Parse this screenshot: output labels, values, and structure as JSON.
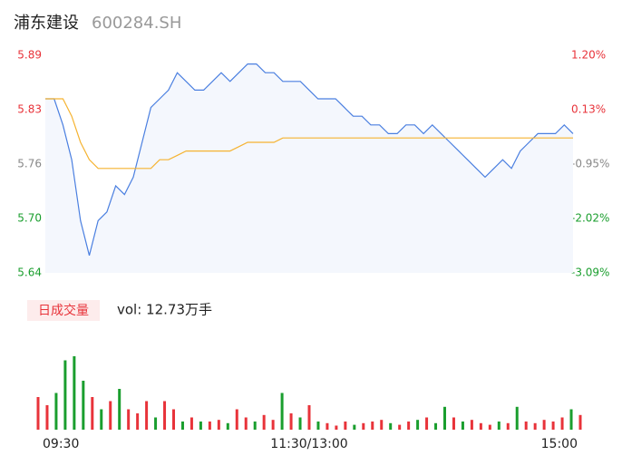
{
  "header": {
    "name": "浦东建设",
    "code": "600284.SH"
  },
  "chart_data": [
    {
      "type": "line",
      "x": [
        0,
        4,
        8,
        12,
        16,
        20,
        24,
        28,
        32,
        36,
        40,
        44,
        48,
        52,
        56,
        60,
        64,
        68,
        72,
        76,
        80,
        84,
        88,
        92,
        96,
        100,
        104,
        108,
        112,
        116,
        120,
        124,
        128,
        132,
        136,
        140,
        144,
        148,
        152,
        156,
        160,
        164,
        168,
        172,
        176,
        180,
        184,
        188,
        192,
        196,
        200,
        204,
        208,
        212,
        216,
        220,
        224,
        228,
        232,
        236,
        240
      ],
      "xlim": [
        0,
        240
      ],
      "xticks": [
        {
          "value": 0,
          "label": "09:30"
        },
        {
          "value": 120,
          "label": "11:30/13:00"
        },
        {
          "value": 240,
          "label": "15:00"
        }
      ],
      "ylim": [
        5.64,
        5.89
      ],
      "yticks": [
        {
          "value": 5.64,
          "label": "5.64"
        },
        {
          "value": 5.7025,
          "label": "5.70"
        },
        {
          "value": 5.765,
          "label": "5.76"
        },
        {
          "value": 5.8275,
          "label": "5.83"
        },
        {
          "value": 5.89,
          "label": "5.89"
        }
      ],
      "y2lim": [
        -3.09,
        1.2
      ],
      "y2ticks": [
        {
          "value": -3.09,
          "label": "-3.09%"
        },
        {
          "value": -2.0175,
          "label": "-2.02%"
        },
        {
          "value": -0.945,
          "label": "-0.95%"
        },
        {
          "value": 0.1275,
          "label": "0.13%"
        },
        {
          "value": 1.2,
          "label": "1.20%"
        }
      ],
      "up_color": "#e8333a",
      "down_color": "#1a9e2e",
      "flat_color": "#888888",
      "area_color": "#f4f7fd",
      "series": [
        {
          "color": "#4a7fe0",
          "values": [
            5.84,
            5.84,
            5.81,
            5.77,
            5.7,
            5.66,
            5.7,
            5.71,
            5.74,
            5.73,
            5.75,
            5.79,
            5.83,
            5.84,
            5.85,
            5.87,
            5.86,
            5.85,
            5.85,
            5.86,
            5.87,
            5.86,
            5.87,
            5.88,
            5.88,
            5.87,
            5.87,
            5.86,
            5.86,
            5.86,
            5.85,
            5.84,
            5.84,
            5.84,
            5.83,
            5.82,
            5.82,
            5.81,
            5.81,
            5.8,
            5.8,
            5.81,
            5.81,
            5.8,
            5.81,
            5.8,
            5.79,
            5.78,
            5.77,
            5.76,
            5.75,
            5.76,
            5.77,
            5.76,
            5.78,
            5.79,
            5.8,
            5.8,
            5.8,
            5.81,
            5.8
          ]
        },
        {
          "color": "#f5b331",
          "values": [
            5.84,
            5.84,
            5.84,
            5.82,
            5.79,
            5.77,
            5.76,
            5.76,
            5.76,
            5.76,
            5.76,
            5.76,
            5.76,
            5.77,
            5.77,
            5.775,
            5.78,
            5.78,
            5.78,
            5.78,
            5.78,
            5.78,
            5.785,
            5.79,
            5.79,
            5.79,
            5.79,
            5.795,
            5.795,
            5.795,
            5.795,
            5.795,
            5.795,
            5.795,
            5.795,
            5.795,
            5.795,
            5.795,
            5.795,
            5.795,
            5.795,
            5.795,
            5.795,
            5.795,
            5.795,
            5.795,
            5.795,
            5.795,
            5.795,
            5.795,
            5.795,
            5.795,
            5.795,
            5.795,
            5.795,
            5.795,
            5.795,
            5.795,
            5.795,
            5.795,
            5.795
          ]
        }
      ]
    },
    {
      "type": "bar",
      "badge": "日成交量",
      "label": "vol: 12.73万手",
      "ylim": [
        0,
        100
      ],
      "up_color": "#e8333a",
      "down_color": "#1a9e2e",
      "values": [
        40,
        30,
        45,
        85,
        90,
        60,
        40,
        25,
        35,
        50,
        25,
        20,
        35,
        15,
        35,
        25,
        10,
        15,
        10,
        10,
        12,
        8,
        25,
        15,
        10,
        18,
        12,
        45,
        20,
        15,
        30,
        10,
        8,
        5,
        10,
        6,
        8,
        10,
        12,
        8,
        6,
        10,
        12,
        15,
        8,
        28,
        15,
        10,
        12,
        8,
        6,
        10,
        8,
        28,
        10,
        8,
        12,
        10,
        15,
        25,
        18
      ],
      "direction": [
        "up",
        "up",
        "down",
        "down",
        "down",
        "down",
        "up",
        "down",
        "up",
        "down",
        "up",
        "up",
        "up",
        "down",
        "up",
        "up",
        "down",
        "up",
        "down",
        "up",
        "up",
        "down",
        "up",
        "up",
        "down",
        "up",
        "up",
        "down",
        "up",
        "down",
        "up",
        "down",
        "up",
        "up",
        "up",
        "down",
        "up",
        "up",
        "up",
        "down",
        "up",
        "up",
        "down",
        "up",
        "down",
        "down",
        "up",
        "down",
        "up",
        "up",
        "up",
        "down",
        "up",
        "down",
        "up",
        "up",
        "up",
        "up",
        "up",
        "down",
        "up"
      ]
    }
  ]
}
